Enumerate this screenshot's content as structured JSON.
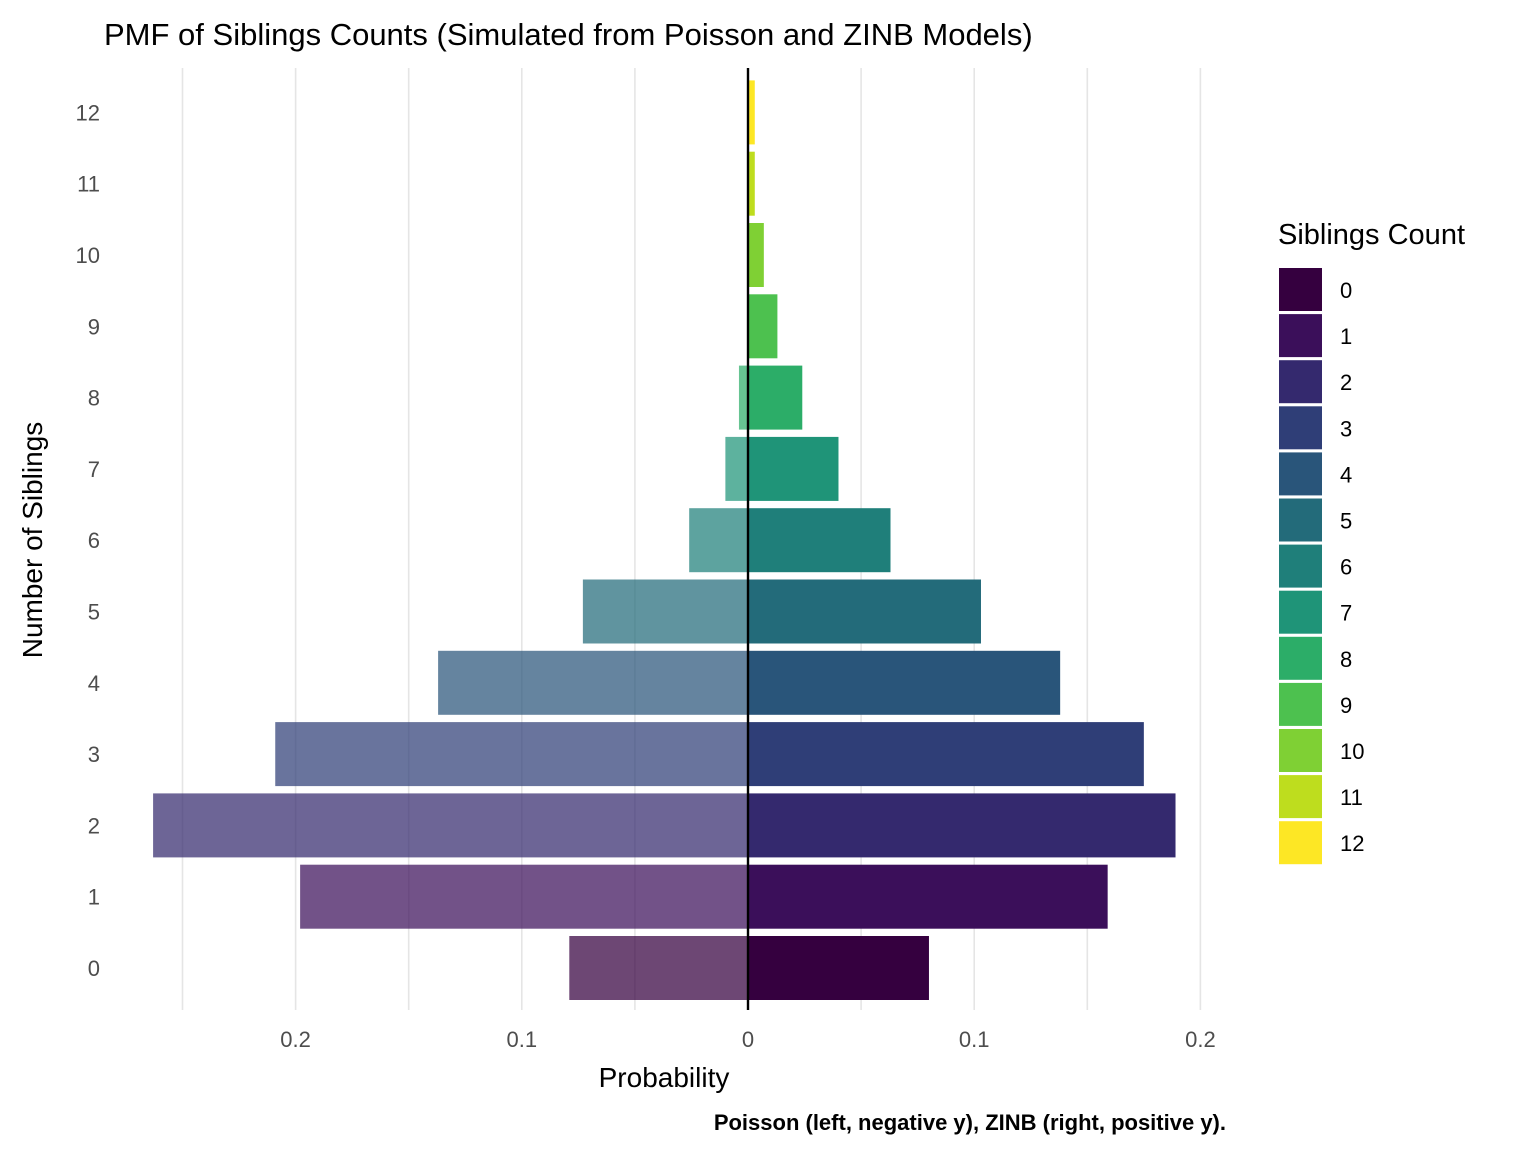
{
  "chart_data": {
    "type": "bar",
    "orientation": "horizontal-diverging",
    "title": "PMF of Siblings Counts (Simulated from Poisson and ZINB Models)",
    "xlabel": "Probability",
    "ylabel": "Number of Siblings",
    "caption": "Poisson (left, negative y), ZINB (right, positive y).",
    "categories": [
      "0",
      "1",
      "2",
      "3",
      "4",
      "5",
      "6",
      "7",
      "8",
      "9",
      "10",
      "11",
      "12"
    ],
    "series": [
      {
        "name": "Poisson",
        "side": "left",
        "values": [
          0.079,
          0.198,
          0.263,
          0.209,
          0.137,
          0.073,
          0.026,
          0.01,
          0.004,
          0,
          0,
          0,
          0
        ]
      },
      {
        "name": "ZINB",
        "side": "right",
        "values": [
          0.08,
          0.159,
          0.189,
          0.175,
          0.138,
          0.103,
          0.063,
          0.04,
          0.024,
          0.013,
          0.007,
          0.003,
          0.003
        ]
      }
    ],
    "xlim": [
      -0.26,
      0.2
    ],
    "x_ticks": [
      -0.2,
      -0.1,
      0,
      0.1,
      0.2
    ],
    "x_tick_labels": [
      "0.2",
      "0.1",
      "0",
      "0.1",
      "0.2"
    ],
    "grid": true,
    "legend": {
      "title": "Siblings Count",
      "position": "right",
      "labels": [
        "0",
        "1",
        "2",
        "3",
        "4",
        "5",
        "6",
        "7",
        "8",
        "9",
        "10",
        "11",
        "12"
      ]
    },
    "colors": [
      "#440154",
      "#481A6C",
      "#472F7D",
      "#414487",
      "#39568C",
      "#31688E",
      "#2A788E",
      "#23888E",
      "#1F988B",
      "#22A884",
      "#35B779",
      "#54C568",
      "#7AD151",
      "#A5DB36",
      "#D2E21B",
      "#FDE725"
    ],
    "palette": [
      "#440154",
      "#482173",
      "#433E85",
      "#38598C",
      "#2D708E",
      "#25858E",
      "#1E9B8A",
      "#2BB07F",
      "#51C56A",
      "#85D54A",
      "#C2DF23",
      "#FDE725"
    ],
    "bar_colors": [
      "#35003f",
      "#3b0f5a",
      "#34296e",
      "#2f3e77",
      "#29557a",
      "#236b7a",
      "#1f7f7a",
      "#1f9478",
      "#2cad68",
      "#4dc14f",
      "#7fd034",
      "#bedd1e",
      "#fde725"
    ]
  }
}
